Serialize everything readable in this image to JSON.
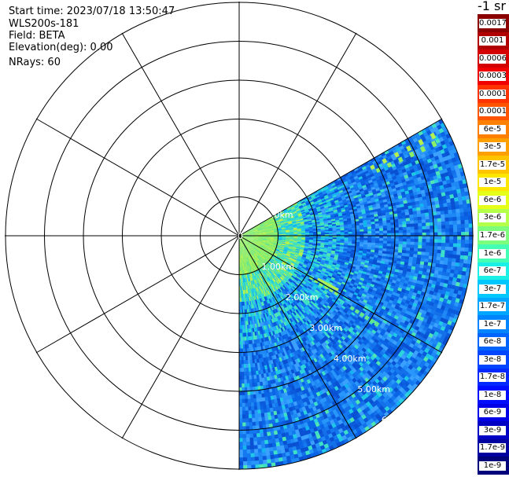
{
  "header": {
    "start_time": "Start time: 2023/07/18 13:50:47",
    "instrument": "WLS200s-181",
    "field": "Field: BETA",
    "elevation": "Elevation(deg): 0.00",
    "nrays": "NRays: 60"
  },
  "colorbar": {
    "title": "-1 sr",
    "levels": [
      {
        "label": "0.0017",
        "color": "#8b0000"
      },
      {
        "label": "0.001",
        "color": "#b00000"
      },
      {
        "label": "0.0006",
        "color": "#d40000"
      },
      {
        "label": "0.0003",
        "color": "#f00000"
      },
      {
        "label": "0.00017",
        "color": "#ff3300"
      },
      {
        "label": "0.0001",
        "color": "#ff5500"
      },
      {
        "label": "6e-5",
        "color": "#ff8000"
      },
      {
        "label": "3e-5",
        "color": "#ffa000"
      },
      {
        "label": "1.7e-5",
        "color": "#ffc400"
      },
      {
        "label": "1e-5",
        "color": "#ffe600"
      },
      {
        "label": "6e-6",
        "color": "#e6ff1a"
      },
      {
        "label": "3e-6",
        "color": "#b4ff4a"
      },
      {
        "label": "1.7e-6",
        "color": "#7cff7c"
      },
      {
        "label": "1e-6",
        "color": "#44ffb4"
      },
      {
        "label": "6e-7",
        "color": "#1af0e6"
      },
      {
        "label": "3e-7",
        "color": "#00c8ff"
      },
      {
        "label": "1.7e-7",
        "color": "#00a6ff"
      },
      {
        "label": "1e-7",
        "color": "#0084ff"
      },
      {
        "label": "6e-8",
        "color": "#0064ff"
      },
      {
        "label": "3e-8",
        "color": "#0046ff"
      },
      {
        "label": "1.7e-8",
        "color": "#0028ff"
      },
      {
        "label": "1e-8",
        "color": "#000cff"
      },
      {
        "label": "6e-9",
        "color": "#0000e6"
      },
      {
        "label": "3e-9",
        "color": "#0000c4"
      },
      {
        "label": "1.7e-9",
        "color": "#0000a0"
      },
      {
        "label": "1e-9",
        "color": "#00007a"
      }
    ]
  },
  "range_labels": [
    "0",
    "1.00km",
    "2.00km",
    "3.00km",
    "4.00km",
    "5.00km",
    "6"
  ],
  "top_range_label": ".0km",
  "chart_data": {
    "type": "ppi",
    "field": "BETA",
    "units": "-1 sr",
    "elevation_deg": 0.0,
    "nrays": 60,
    "sector_az_deg": [
      60,
      180
    ],
    "range_km": [
      0,
      6
    ],
    "ring_spacing_km": 1.0,
    "spoke_spacing_deg": 30,
    "scale": "log"
  }
}
